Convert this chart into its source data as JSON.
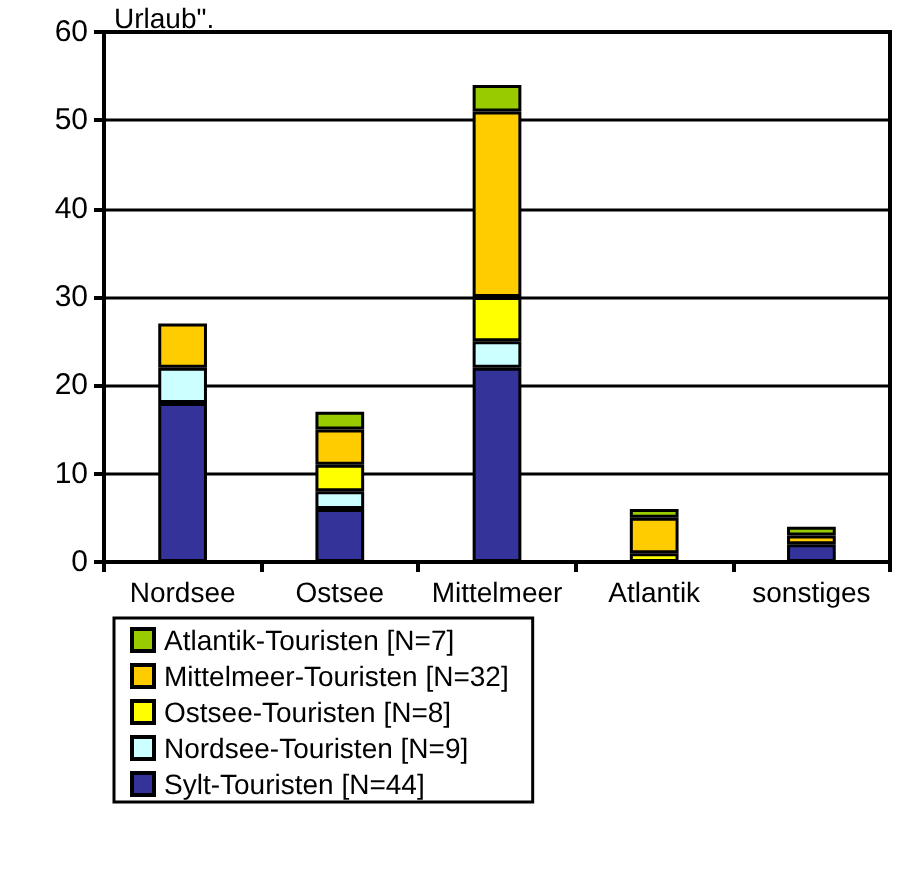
{
  "chart_data": {
    "type": "bar",
    "title": "Urlaub\".",
    "stacked": true,
    "categories": [
      "Nordsee",
      "Ostsee",
      "Mittelmeer",
      "Atlantik",
      "sonstiges"
    ],
    "series": [
      {
        "name": "Sylt-Touristen [N=44]",
        "color": "#333399",
        "values": [
          18,
          6,
          22,
          0,
          2
        ]
      },
      {
        "name": "Nordsee-Touristen [N=9]",
        "color": "#ccffff",
        "values": [
          4,
          2,
          3,
          0,
          0
        ]
      },
      {
        "name": "Ostsee-Touristen [N=8]",
        "color": "#ffff00",
        "values": [
          0,
          3,
          5,
          1,
          0
        ]
      },
      {
        "name": "Mittelmeer-Touristen [N=32]",
        "color": "#ffcc00",
        "values": [
          5,
          4,
          21,
          4,
          1
        ]
      },
      {
        "name": "Atlantik-Touristen [N=7]",
        "color": "#99cc00",
        "values": [
          0,
          2,
          3,
          1,
          1
        ]
      }
    ],
    "ylim": [
      0,
      60
    ],
    "yticks": [
      0,
      10,
      20,
      30,
      40,
      50,
      60
    ],
    "grid": "y",
    "legend": "bottom"
  }
}
